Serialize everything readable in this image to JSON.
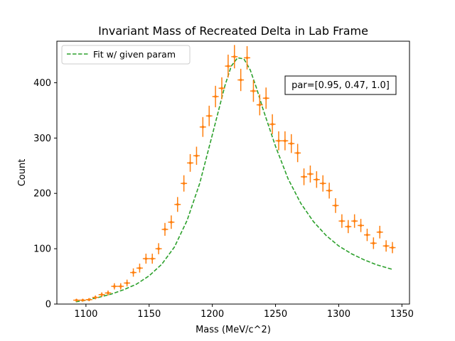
{
  "chart_data": {
    "type": "scatter",
    "title": "Invariant Mass of Recreated Delta in Lab Frame",
    "xlabel": "Mass (MeV/c^2)",
    "ylabel": "Count",
    "xlim": [
      1077,
      1356
    ],
    "ylim": [
      0,
      475
    ],
    "xticks": [
      1100,
      1150,
      1200,
      1250,
      1300,
      1350
    ],
    "yticks": [
      0,
      100,
      200,
      300,
      400
    ],
    "grid": false,
    "legend_position": "top-left",
    "annotation": "par=[0.95, 0.47, 1.0]",
    "series": [
      {
        "name": "",
        "kind": "errorbar",
        "color": "#ff7f0e",
        "x_halfwidth": 2.5,
        "x": [
          1092.5,
          1097.5,
          1102.5,
          1107.5,
          1112.5,
          1117.5,
          1122.5,
          1127.5,
          1132.5,
          1137.5,
          1142.5,
          1147.5,
          1152.5,
          1157.5,
          1162.5,
          1167.5,
          1172.5,
          1177.5,
          1182.5,
          1187.5,
          1192.5,
          1197.5,
          1202.5,
          1207.5,
          1212.5,
          1217.5,
          1222.5,
          1227.5,
          1232.5,
          1237.5,
          1242.5,
          1247.5,
          1252.5,
          1257.5,
          1262.5,
          1267.5,
          1272.5,
          1277.5,
          1282.5,
          1287.5,
          1292.5,
          1297.5,
          1302.5,
          1307.5,
          1312.5,
          1317.5,
          1322.5,
          1327.5,
          1332.5,
          1337.5,
          1342.5
        ],
        "y": [
          7,
          7,
          8,
          12,
          17,
          20,
          32,
          32,
          38,
          57,
          65,
          82,
          82,
          100,
          135,
          148,
          180,
          218,
          255,
          268,
          320,
          340,
          375,
          390,
          430,
          447,
          405,
          445,
          385,
          360,
          372,
          325,
          295,
          295,
          290,
          273,
          230,
          235,
          225,
          218,
          205,
          178,
          150,
          140,
          150,
          142,
          125,
          110,
          130,
          105,
          102
        ]
      },
      {
        "name": "Fit w/ given param",
        "kind": "dashed-line",
        "color": "#2ca02c",
        "x": [
          1092,
          1100,
          1110,
          1120,
          1130,
          1140,
          1150,
          1160,
          1170,
          1180,
          1190,
          1200,
          1210,
          1215,
          1220,
          1225,
          1230,
          1235,
          1240,
          1250,
          1260,
          1270,
          1280,
          1290,
          1300,
          1310,
          1320,
          1330,
          1342
        ],
        "y": [
          4,
          7,
          12,
          18,
          26,
          36,
          51,
          72,
          103,
          151,
          218,
          306,
          395,
          430,
          445,
          443,
          423,
          390,
          353,
          285,
          226,
          182,
          149,
          124,
          105,
          91,
          80,
          71,
          63
        ]
      }
    ]
  }
}
